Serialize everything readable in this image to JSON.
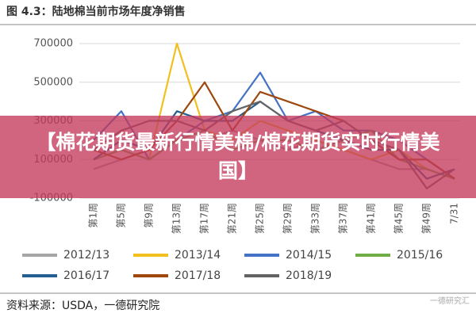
{
  "chart_data": {
    "type": "line",
    "title": "图 4.3：陆地棉当前市场年度净销售",
    "source": "资料来源：USDA，一德研究院",
    "watermark": "一德研究汇",
    "categories": [
      "第1周",
      "第5周",
      "第9周",
      "第13周",
      "第17周",
      "第21周",
      "第25周",
      "第29周",
      "第33周",
      "第37周",
      "第41周",
      "第45周",
      "第49周",
      "7/31"
    ],
    "ylim": [
      -100000,
      700000
    ],
    "yticks": [
      -100000,
      100000,
      300000,
      500000,
      700000
    ],
    "grid": true,
    "series": [
      {
        "name": "2012/13",
        "color": "#a6a6a6",
        "values": [
          50000,
          100000,
          150000,
          200000,
          200000,
          250000,
          200000,
          150000,
          200000,
          150000,
          100000,
          50000,
          50000,
          0
        ]
      },
      {
        "name": "2013/14",
        "color": "#f2c01e",
        "values": [
          100000,
          150000,
          100000,
          700000,
          250000,
          200000,
          300000,
          250000,
          200000,
          150000,
          100000,
          150000,
          50000,
          0
        ]
      },
      {
        "name": "2014/15",
        "color": "#4472c4",
        "values": [
          200000,
          350000,
          100000,
          200000,
          300000,
          350000,
          550000,
          300000,
          350000,
          250000,
          250000,
          200000,
          100000,
          0
        ]
      },
      {
        "name": "2015/16",
        "color": "#70ad47",
        "values": [
          100000,
          150000,
          100000,
          200000,
          250000,
          150000,
          200000,
          200000,
          150000,
          200000,
          250000,
          100000,
          50000,
          0
        ]
      },
      {
        "name": "2016/17",
        "color": "#255e91",
        "values": [
          100000,
          200000,
          150000,
          350000,
          300000,
          300000,
          400000,
          300000,
          250000,
          200000,
          150000,
          150000,
          0,
          50000
        ]
      },
      {
        "name": "2017/18",
        "color": "#9e480e",
        "values": [
          150000,
          100000,
          150000,
          300000,
          500000,
          250000,
          450000,
          400000,
          350000,
          300000,
          200000,
          100000,
          100000,
          0
        ]
      },
      {
        "name": "2018/19",
        "color": "#636363",
        "values": [
          150000,
          250000,
          300000,
          300000,
          250000,
          350000,
          400000,
          300000,
          250000,
          300000,
          200000,
          150000,
          -50000,
          50000
        ]
      }
    ]
  },
  "banner": {
    "text": "【棉花期货最新行情美棉/棉花期货实时行情美国】"
  }
}
